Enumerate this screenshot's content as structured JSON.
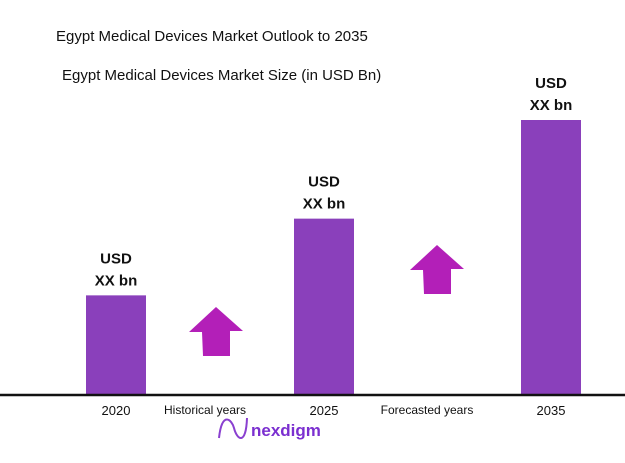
{
  "header": {
    "title": "Egypt Medical Devices Market Outlook to 2035",
    "subtitle": "Egypt Medical Devices Market Size (in USD Bn)"
  },
  "chart_data": {
    "type": "bar",
    "title": "Egypt Medical Devices Market Size (in USD Bn)",
    "categories": [
      "2020",
      "2025",
      "2035"
    ],
    "values": [
      36,
      64,
      100
    ],
    "value_note": "relative scale; actual values not printed",
    "data_labels": [
      [
        "USD",
        "XX bn"
      ],
      [
        "USD",
        "XX bn"
      ],
      [
        "USD",
        "XX bn"
      ]
    ],
    "period_labels": [
      "Historical years",
      "Forecasted years"
    ],
    "ylim": [
      0,
      100
    ],
    "grid": false,
    "bar_color": "#8a40bb",
    "arrow_color": "#b31fb8"
  },
  "logo": {
    "text": "nexdigm",
    "color": "#7b2fd0"
  }
}
